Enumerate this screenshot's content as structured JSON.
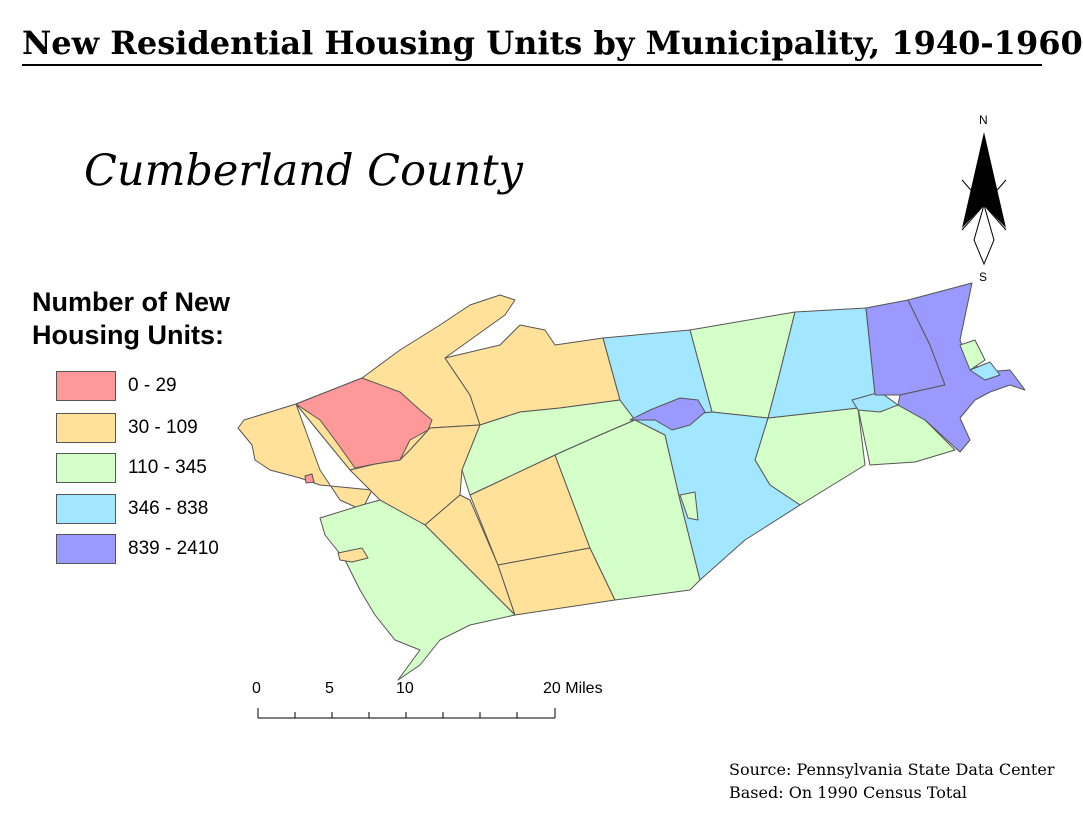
{
  "title": "New Residential Housing Units by Municipality, 1940-1960",
  "subtitle": "Cumberland County",
  "legend": {
    "title_line1": "Number of New",
    "title_line2": "Housing Units:",
    "classes": [
      {
        "label": "0 - 29",
        "color": "#FF9999"
      },
      {
        "label": "30 - 109",
        "color": "#FFE199"
      },
      {
        "label": "110 - 345",
        "color": "#D4FFC8"
      },
      {
        "label": "346 - 838",
        "color": "#A3E6FF"
      },
      {
        "label": "839 - 2410",
        "color": "#9999FF"
      }
    ]
  },
  "scale_bar": {
    "labels": [
      "0",
      "5",
      "10",
      "20 Miles"
    ]
  },
  "north_arrow": {
    "north": "N",
    "south": "S",
    "icon": "north-arrow-icon"
  },
  "source": {
    "line1": "Source: Pennsylvania State Data Center",
    "line2": "Based: On 1990 Census Total"
  }
}
